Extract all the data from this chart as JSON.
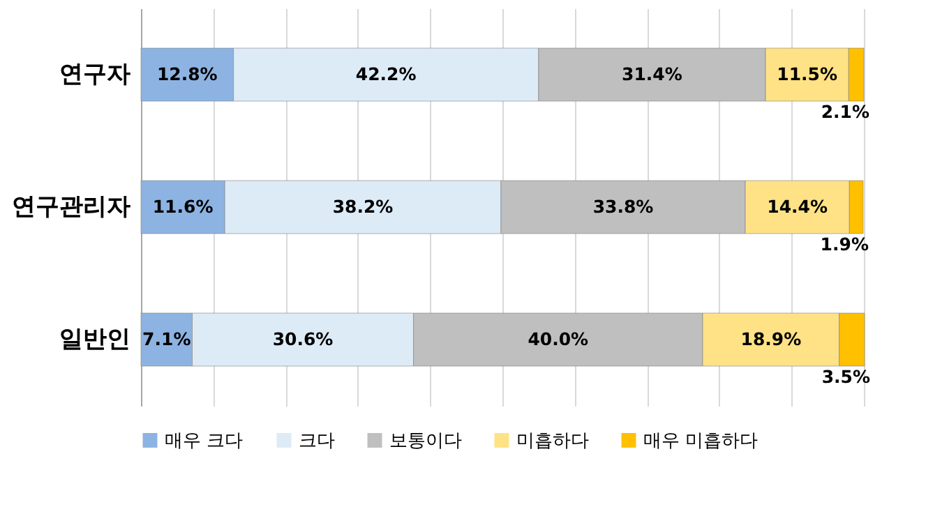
{
  "chart_data": {
    "type": "bar",
    "orientation": "horizontal",
    "stacked": true,
    "categories": [
      "연구자",
      "연구관리자",
      "일반인"
    ],
    "series": [
      {
        "name": "매우 크다",
        "color": "#8db3e2",
        "values": [
          12.8,
          11.6,
          7.1
        ],
        "value_labels": [
          "12.8%",
          "11.6%",
          "7.1%"
        ]
      },
      {
        "name": "크다",
        "color": "#ddebf7",
        "values": [
          42.2,
          38.2,
          30.6
        ],
        "value_labels": [
          "42.2%",
          "38.2%",
          "30.6%"
        ]
      },
      {
        "name": "보통이다",
        "color": "#bfbfbf",
        "values": [
          31.4,
          33.8,
          40.0
        ],
        "value_labels": [
          "31.4%",
          "33.8%",
          "40.0%"
        ]
      },
      {
        "name": "미흡하다",
        "color": "#ffe285",
        "values": [
          11.5,
          14.4,
          18.9
        ],
        "value_labels": [
          "11.5%",
          "14.4%",
          "18.9%"
        ]
      },
      {
        "name": "매우 미흡하다",
        "color": "#ffc000",
        "values": [
          2.1,
          1.9,
          3.5
        ],
        "value_labels": [
          "2.1%",
          "1.9%",
          "3.5%"
        ]
      }
    ],
    "xlim": [
      0,
      100
    ],
    "xticks": [
      {
        "value": 0,
        "label": null
      },
      {
        "value": 10,
        "label": null
      },
      {
        "value": 20,
        "label": null
      },
      {
        "value": 30,
        "label": null
      },
      {
        "value": 40,
        "label": null
      },
      {
        "value": 50,
        "label": null
      },
      {
        "value": 60,
        "label": null
      },
      {
        "value": 70,
        "label": null
      },
      {
        "value": 80,
        "label": null
      },
      {
        "value": 90,
        "label": null
      },
      {
        "value": 100,
        "label": null
      }
    ],
    "grid": "x",
    "legend": "bottom",
    "tick_labels": "y"
  }
}
